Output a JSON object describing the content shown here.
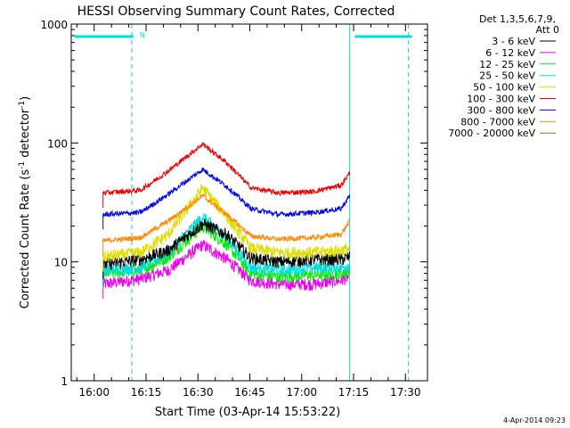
{
  "chart_data": {
    "type": "line",
    "title": "HESSI Observing Summary Count Rates, Corrected",
    "xlabel": "Start Time (03-Apr-14 15:53:22)",
    "ylabel_main": "Corrected Count Rate (s",
    "ylabel_exp1": "-1",
    "ylabel_mid": " detector",
    "ylabel_exp2": "-1",
    "ylabel_end": ")",
    "yscale": "log",
    "ylim": [
      1,
      1000
    ],
    "xlim_minutes": [
      0,
      103
    ],
    "x_ticks": [
      "16:00",
      "16:15",
      "16:30",
      "16:45",
      "17:00",
      "17:15",
      "17:30"
    ],
    "y_ticks": [
      "1",
      "10",
      "100",
      "1000"
    ],
    "legend": {
      "header_line1": "Det 1,3,5,6,7,9,",
      "header_line2": "Att 0",
      "placement": "right"
    },
    "timestamp": "4-Apr-2014 09:23",
    "night_marker_label": "N",
    "daylight_start_minute": 9.2,
    "daylight_end_minute": 80.7,
    "night_intervals_minutes": [
      [
        1,
        18
      ],
      [
        82,
        98.5
      ]
    ],
    "saa_lines_minutes": [
      0,
      17.5,
      80.5,
      97.5
    ],
    "series": [
      {
        "name": "3 - 6 keV",
        "color": "#000000",
        "x_minutes": [
          9.2,
          20,
          28,
          38,
          45,
          52,
          60,
          70,
          78,
          80.5
        ],
        "values": [
          9.5,
          10.5,
          12.5,
          21,
          17,
          10.8,
          10,
          10.5,
          10.5,
          11
        ]
      },
      {
        "name": "6 - 12 keV",
        "color": "#ee00ee",
        "x_minutes": [
          9.2,
          20,
          28,
          38,
          45,
          52,
          60,
          70,
          78,
          80.5
        ],
        "values": [
          6.5,
          7.2,
          8.5,
          14,
          10.5,
          7,
          6.5,
          6.5,
          7,
          7.5
        ]
      },
      {
        "name": "12 - 25 keV",
        "color": "#00ee00",
        "x_minutes": [
          9.2,
          20,
          28,
          38,
          45,
          52,
          60,
          70,
          78,
          80.5
        ],
        "values": [
          8,
          8.5,
          11,
          20,
          14,
          8,
          7.5,
          7.8,
          8,
          8.5
        ]
      },
      {
        "name": "25 - 50 keV",
        "color": "#00dddd",
        "x_minutes": [
          9.2,
          20,
          28,
          38,
          45,
          52,
          60,
          70,
          78,
          80.5
        ],
        "values": [
          8.5,
          9,
          12,
          24,
          16,
          9,
          8.5,
          9,
          9,
          9.5
        ]
      },
      {
        "name": "50 - 100 keV",
        "color": "#dddd00",
        "x_minutes": [
          9.2,
          20,
          28,
          38,
          45,
          52,
          60,
          70,
          78,
          80.5
        ],
        "values": [
          11,
          12,
          17,
          42,
          24,
          13,
          12,
          12,
          12.5,
          13
        ]
      },
      {
        "name": "100 - 300 keV",
        "color": "#ee0000",
        "x_minutes": [
          9.2,
          20,
          28,
          38,
          45,
          52,
          60,
          70,
          78,
          80.5
        ],
        "values": [
          38,
          40,
          58,
          98,
          68,
          42,
          38,
          39,
          44,
          56
        ]
      },
      {
        "name": "300 - 800 keV",
        "color": "#0000ee",
        "x_minutes": [
          9.2,
          20,
          28,
          38,
          45,
          52,
          60,
          70,
          78,
          80.5
        ],
        "values": [
          25,
          26,
          37,
          60,
          43,
          28,
          25,
          26,
          28,
          36
        ]
      },
      {
        "name": "800 - 7000 keV",
        "color": "#ff8800",
        "x_minutes": [
          9.2,
          20,
          28,
          38,
          45,
          52,
          60,
          70,
          78,
          80.5
        ],
        "values": [
          15,
          16,
          22,
          36,
          25,
          16.5,
          15.5,
          16,
          17,
          22
        ]
      },
      {
        "name": "7000 - 20000 keV",
        "color": "#8b7a00",
        "x_minutes": [
          9.2,
          20,
          28,
          38,
          45,
          52,
          60,
          70,
          78,
          80.5
        ],
        "values": [
          null,
          null,
          null,
          null,
          null,
          null,
          null,
          null,
          null,
          null
        ]
      }
    ],
    "grid": false
  }
}
